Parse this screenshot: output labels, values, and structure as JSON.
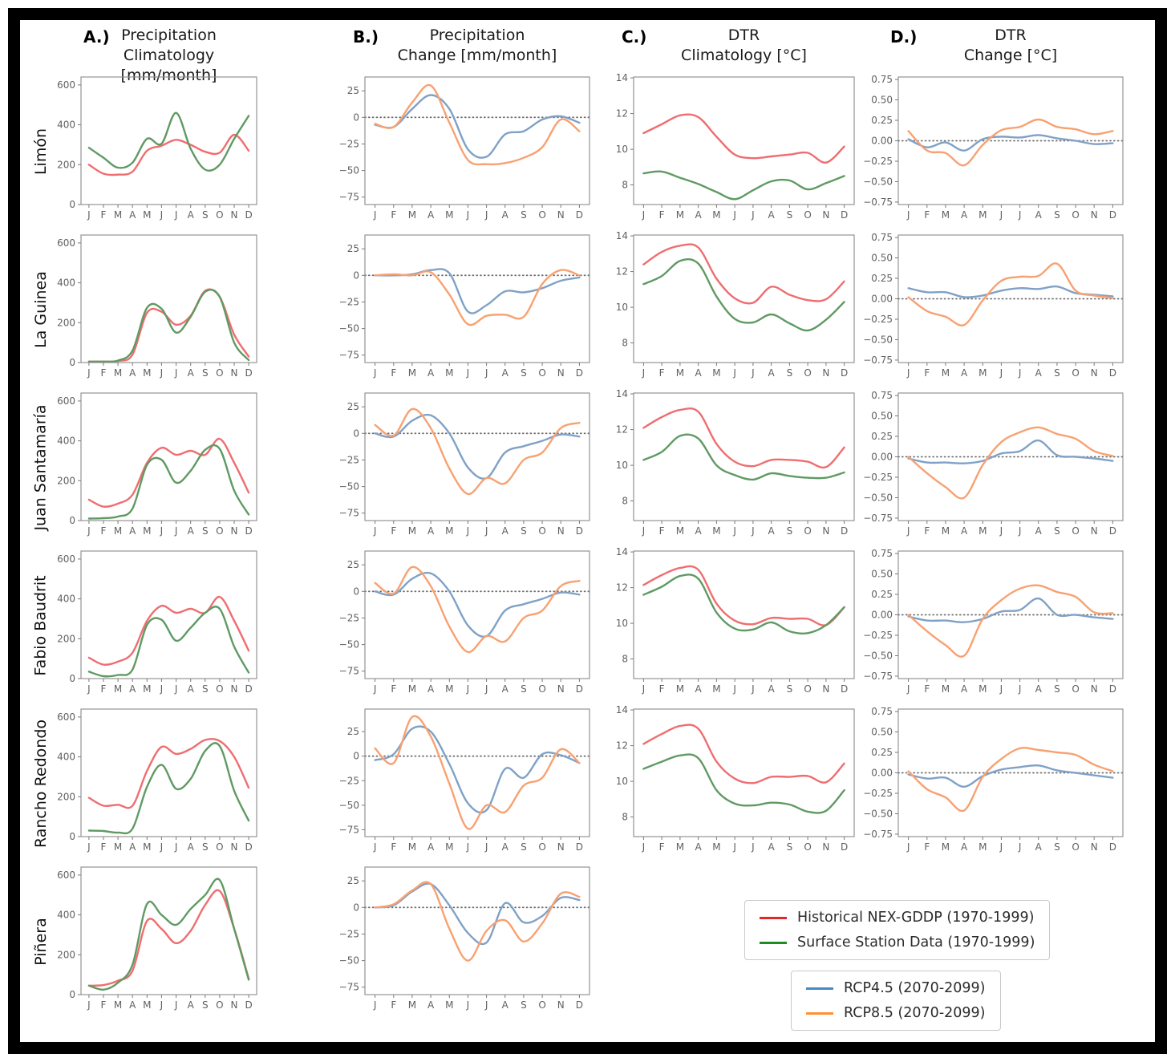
{
  "chart_data": {
    "type": "line",
    "months": [
      "J",
      "F",
      "M",
      "A",
      "M",
      "J",
      "J",
      "A",
      "S",
      "O",
      "N",
      "D"
    ],
    "series_defs": {
      "red": {
        "label": "Historical NEX-GDDP (1970-1999)",
        "color": "#e3262a",
        "plot_color": "#ef6d70"
      },
      "green": {
        "label": "Surface Station Data (1970-1999)",
        "color": "#1f8c1f",
        "plot_color": "#5f9a63"
      },
      "blue": {
        "label": "RCP4.5 (2070-2099)",
        "color": "#4789c0",
        "plot_color": "#7fa1c6"
      },
      "orange": {
        "label": "RCP8.5 (2070-2099)",
        "color": "#ff9030",
        "plot_color": "#f8a171"
      }
    },
    "columns": [
      {
        "key": "A",
        "panel_label": "A.)",
        "title_line1": "Precipitation",
        "title_line2": "Climatology [mm/month]",
        "ylim": [
          0,
          640
        ],
        "yticks": [
          {
            "v": 600,
            "label": "600"
          },
          {
            "v": 400,
            "label": "400"
          },
          {
            "v": 200,
            "label": "200"
          },
          {
            "v": 0,
            "label": "0"
          }
        ],
        "zero_line": false
      },
      {
        "key": "B",
        "panel_label": "B.)",
        "title_line1": "Precipitation",
        "title_line2": "Change [mm/month]",
        "ylim": [
          -82,
          38
        ],
        "yticks": [
          {
            "v": 25,
            "label": "25"
          },
          {
            "v": 0,
            "label": "0"
          },
          {
            "v": -25,
            "label": "−25"
          },
          {
            "v": -50,
            "label": "−50"
          },
          {
            "v": -75,
            "label": "−75"
          }
        ],
        "zero_line": true
      },
      {
        "key": "C",
        "panel_label": "C.)",
        "title_line1": "DTR",
        "title_line2": "Climatology [°C]",
        "ylim": [
          6.9,
          14.05
        ],
        "yticks": [
          {
            "v": 14,
            "label": "14"
          },
          {
            "v": 12,
            "label": "12"
          },
          {
            "v": 10,
            "label": "10"
          },
          {
            "v": 8,
            "label": "8"
          }
        ],
        "zero_line": false
      },
      {
        "key": "D",
        "panel_label": "D.)",
        "title_line1": "DTR",
        "title_line2": "Change [°C]",
        "ylim": [
          -0.78,
          0.78
        ],
        "yticks": [
          {
            "v": 0.75,
            "label": "0.75"
          },
          {
            "v": 0.5,
            "label": "0.50"
          },
          {
            "v": 0.25,
            "label": "0.25"
          },
          {
            "v": 0,
            "label": "0.00"
          },
          {
            "v": -0.25,
            "label": "−0.25"
          },
          {
            "v": -0.5,
            "label": "−0.50"
          },
          {
            "v": -0.75,
            "label": "−0.75"
          }
        ],
        "zero_line": true
      }
    ],
    "rows": [
      {
        "station": "Limón",
        "charts": {
          "A": {
            "series": {
              "red": [
                200,
                155,
                150,
                165,
                270,
                295,
                325,
                300,
                265,
                260,
                350,
                270
              ],
              "green": [
                285,
                235,
                185,
                210,
                330,
                305,
                460,
                280,
                175,
                200,
                330,
                445
              ]
            }
          },
          "B": {
            "series": {
              "blue": [
                -7,
                -9,
                8,
                21,
                8,
                -30,
                -37,
                -16,
                -13,
                -2,
                1,
                -5
              ],
              "orange": [
                -6,
                -9,
                14,
                30,
                -5,
                -40,
                -44,
                -43,
                -38,
                -28,
                -2,
                -13
              ]
            }
          },
          "C": {
            "series": {
              "red": [
                10.9,
                11.4,
                11.9,
                11.8,
                10.7,
                9.7,
                9.5,
                9.6,
                9.7,
                9.8,
                9.25,
                10.15
              ],
              "green": [
                8.65,
                8.75,
                8.4,
                8.05,
                7.6,
                7.2,
                7.7,
                8.2,
                8.25,
                7.75,
                8.1,
                8.5
              ]
            }
          },
          "D": {
            "series": {
              "blue": [
                0.02,
                -0.08,
                -0.02,
                -0.12,
                0.02,
                0.05,
                0.04,
                0.07,
                0.03,
                0,
                -0.04,
                -0.03
              ],
              "orange": [
                0.12,
                -0.12,
                -0.15,
                -0.3,
                -0.05,
                0.13,
                0.17,
                0.26,
                0.17,
                0.14,
                0.08,
                0.12
              ]
            }
          }
        }
      },
      {
        "station": "La Guinea",
        "charts": {
          "A": {
            "series": {
              "red": [
                5,
                5,
                8,
                40,
                250,
                255,
                190,
                235,
                360,
                330,
                140,
                30
              ],
              "green": [
                5,
                5,
                10,
                60,
                275,
                270,
                150,
                230,
                355,
                330,
                100,
                12
              ]
            }
          },
          "B": {
            "series": {
              "blue": [
                0,
                0,
                1,
                5,
                2,
                -34,
                -28,
                -15,
                -16,
                -12,
                -5,
                -2
              ],
              "orange": [
                0,
                1,
                0,
                3,
                -18,
                -46,
                -38,
                -37,
                -39,
                -8,
                5,
                0
              ]
            }
          },
          "C": {
            "series": {
              "red": [
                12.4,
                13.1,
                13.45,
                13.35,
                11.6,
                10.5,
                10.25,
                11.15,
                10.7,
                10.4,
                10.45,
                11.45
              ],
              "green": [
                11.3,
                11.75,
                12.6,
                12.45,
                10.6,
                9.35,
                9.15,
                9.6,
                9.1,
                8.7,
                9.3,
                10.3
              ]
            }
          },
          "D": {
            "series": {
              "blue": [
                0.13,
                0.08,
                0.08,
                0.02,
                0.04,
                0.1,
                0.13,
                0.12,
                0.15,
                0.07,
                0.05,
                0.03
              ],
              "orange": [
                0.02,
                -0.15,
                -0.22,
                -0.32,
                -0.02,
                0.22,
                0.27,
                0.28,
                0.43,
                0.1,
                0.04,
                0.01
              ]
            }
          }
        }
      },
      {
        "station": "Juan Santamaría",
        "charts": {
          "A": {
            "series": {
              "red": [
                105,
                70,
                85,
                130,
                290,
                365,
                330,
                350,
                330,
                410,
                290,
                140
              ],
              "green": [
                10,
                12,
                20,
                60,
                280,
                305,
                190,
                250,
                355,
                360,
                150,
                30
              ]
            }
          },
          "B": {
            "series": {
              "blue": [
                0,
                -3,
                12,
                17,
                0,
                -32,
                -42,
                -18,
                -12,
                -7,
                -1,
                -3
              ],
              "orange": [
                8,
                -2,
                23,
                5,
                -33,
                -57,
                -42,
                -47,
                -25,
                -18,
                5,
                10
              ]
            }
          },
          "C": {
            "series": {
              "red": [
                12.1,
                12.7,
                13.1,
                13,
                11.2,
                10.2,
                9.95,
                10.3,
                10.3,
                10.2,
                9.9,
                11
              ],
              "green": [
                10.3,
                10.75,
                11.65,
                11.5,
                10,
                9.45,
                9.2,
                9.55,
                9.4,
                9.3,
                9.3,
                9.6
              ]
            }
          },
          "D": {
            "series": {
              "blue": [
                -0.02,
                -0.07,
                -0.07,
                -0.08,
                -0.05,
                0.04,
                0.07,
                0.2,
                0.02,
                0,
                -0.02,
                -0.05
              ],
              "orange": [
                0,
                -0.2,
                -0.37,
                -0.5,
                -0.1,
                0.18,
                0.3,
                0.36,
                0.28,
                0.22,
                0.07,
                0.01
              ]
            }
          }
        }
      },
      {
        "station": "Fabio Baudrit",
        "charts": {
          "A": {
            "series": {
              "red": [
                105,
                70,
                85,
                130,
                290,
                365,
                330,
                350,
                330,
                410,
                290,
                140
              ],
              "green": [
                35,
                12,
                18,
                45,
                270,
                295,
                190,
                255,
                330,
                350,
                160,
                30
              ]
            }
          },
          "B": {
            "series": {
              "blue": [
                0,
                -3,
                12,
                17,
                0,
                -32,
                -42,
                -18,
                -12,
                -7,
                -1,
                -3
              ],
              "orange": [
                8,
                -2,
                23,
                5,
                -33,
                -57,
                -42,
                -47,
                -25,
                -18,
                5,
                10
              ]
            }
          },
          "C": {
            "series": {
              "red": [
                12.15,
                12.7,
                13.1,
                13,
                11.1,
                10.15,
                9.95,
                10.3,
                10.25,
                10.25,
                9.9,
                10.9
              ],
              "green": [
                11.6,
                12.05,
                12.65,
                12.5,
                10.6,
                9.7,
                9.65,
                10.05,
                9.55,
                9.45,
                9.9,
                10.9
              ]
            }
          },
          "D": {
            "series": {
              "blue": [
                -0.02,
                -0.07,
                -0.07,
                -0.09,
                -0.05,
                0.04,
                0.06,
                0.2,
                0,
                0,
                -0.03,
                -0.05
              ],
              "orange": [
                0,
                -0.2,
                -0.37,
                -0.5,
                -0.05,
                0.18,
                0.32,
                0.36,
                0.28,
                0.22,
                0.03,
                0.02
              ]
            }
          }
        }
      },
      {
        "station": "Rancho Redondo",
        "charts": {
          "A": {
            "series": {
              "red": [
                195,
                155,
                160,
                155,
                330,
                450,
                415,
                440,
                485,
                480,
                400,
                245
              ],
              "green": [
                30,
                28,
                20,
                40,
                250,
                360,
                240,
                290,
                430,
                455,
                230,
                80
              ]
            }
          },
          "B": {
            "ylim": [
              -82,
              48
            ],
            "series": {
              "blue": [
                -4,
                2,
                28,
                25,
                -8,
                -48,
                -55,
                -13,
                -22,
                2,
                1,
                -7
              ],
              "orange": [
                8,
                -7,
                40,
                20,
                -28,
                -74,
                -50,
                -57,
                -30,
                -22,
                7,
                -7
              ]
            }
          },
          "C": {
            "series": {
              "red": [
                12.1,
                12.65,
                13.1,
                12.95,
                11.1,
                10.15,
                9.9,
                10.25,
                10.25,
                10.3,
                9.95,
                11
              ],
              "green": [
                10.7,
                11.1,
                11.45,
                11.3,
                9.5,
                8.75,
                8.65,
                8.8,
                8.7,
                8.3,
                8.35,
                9.5
              ]
            }
          },
          "D": {
            "series": {
              "blue": [
                -0.02,
                -0.07,
                -0.06,
                -0.17,
                -0.04,
                0.04,
                0.07,
                0.09,
                0.03,
                0,
                -0.03,
                -0.06
              ],
              "orange": [
                0.02,
                -0.2,
                -0.3,
                -0.46,
                -0.05,
                0.17,
                0.3,
                0.28,
                0.25,
                0.22,
                0.1,
                0.02
              ]
            }
          }
        }
      },
      {
        "station": "Piñera",
        "charts": {
          "A": {
            "series": {
              "red": [
                45,
                48,
                70,
                120,
                370,
                330,
                258,
                320,
                450,
                520,
                330,
                80
              ],
              "green": [
                45,
                25,
                60,
                150,
                455,
                400,
                350,
                430,
                500,
                575,
                330,
                75
              ]
            }
          },
          "B": {
            "series": {
              "blue": [
                0,
                2,
                15,
                22,
                2,
                -24,
                -33,
                4,
                -14,
                -8,
                9,
                7
              ],
              "orange": [
                0,
                3,
                16,
                22,
                -20,
                -50,
                -22,
                -12,
                -32,
                -15,
                13,
                10
              ]
            }
          }
        }
      }
    ],
    "legends": [
      {
        "items": [
          {
            "color_key": "red",
            "label": "Historical NEX-GDDP (1970-1999)"
          },
          {
            "color_key": "green",
            "label": "Surface Station Data (1970-1999)"
          }
        ]
      },
      {
        "items": [
          {
            "color_key": "blue",
            "label": "RCP4.5 (2070-2099)"
          },
          {
            "color_key": "orange",
            "label": "RCP8.5 (2070-2099)"
          }
        ]
      }
    ]
  }
}
